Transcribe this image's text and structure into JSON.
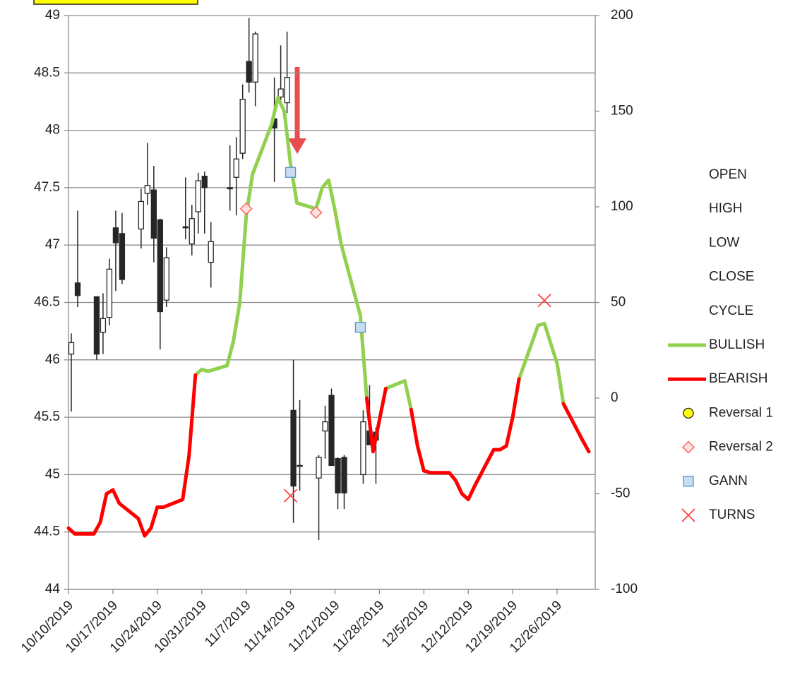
{
  "chart_data": {
    "type": "candlestick",
    "xlim": [
      "2019-10-10",
      "2020-01-01"
    ],
    "xticks": [
      {
        "value": "2019-10-10",
        "label": "10/10/2019"
      },
      {
        "value": "2019-10-17",
        "label": "10/17/2019"
      },
      {
        "value": "2019-10-24",
        "label": "10/24/2019"
      },
      {
        "value": "2019-10-31",
        "label": "10/31/2019"
      },
      {
        "value": "2019-11-07",
        "label": "11/7/2019"
      },
      {
        "value": "2019-11-14",
        "label": "11/14/2019"
      },
      {
        "value": "2019-11-21",
        "label": "11/21/2019"
      },
      {
        "value": "2019-11-28",
        "label": "11/28/2019"
      },
      {
        "value": "2019-12-05",
        "label": "12/5/2019"
      },
      {
        "value": "2019-12-12",
        "label": "12/12/2019"
      },
      {
        "value": "2019-12-19",
        "label": "12/19/2019"
      },
      {
        "value": "2019-12-26",
        "label": "12/26/2019"
      }
    ],
    "ylim": [
      44,
      49
    ],
    "yticks": [
      44,
      44.5,
      45,
      45.5,
      46,
      46.5,
      47,
      47.5,
      48,
      48.5,
      49
    ],
    "y2lim": [
      -100,
      200
    ],
    "y2ticks": [
      -100,
      -50,
      0,
      50,
      100,
      150,
      200
    ],
    "grid": true,
    "candles": {
      "x": [
        "2019-10-10",
        "2019-10-11",
        "2019-10-14",
        "2019-10-15",
        "2019-10-16",
        "2019-10-17",
        "2019-10-18",
        "2019-10-21",
        "2019-10-22",
        "2019-10-23",
        "2019-10-24",
        "2019-10-25",
        "2019-10-28",
        "2019-10-29",
        "2019-10-30",
        "2019-10-31",
        "2019-11-01",
        "2019-11-04",
        "2019-11-05",
        "2019-11-06",
        "2019-11-07",
        "2019-11-08",
        "2019-11-11",
        "2019-11-12",
        "2019-11-13",
        "2019-11-14",
        "2019-11-15",
        "2019-11-18",
        "2019-11-19",
        "2019-11-20",
        "2019-11-21",
        "2019-11-22",
        "2019-11-25",
        "2019-11-26",
        "2019-11-27"
      ],
      "open": {
        "name": "OPEN",
        "values": [
          46.05,
          46.67,
          46.55,
          46.24,
          46.37,
          47.15,
          47.1,
          47.14,
          47.45,
          47.48,
          47.22,
          46.52,
          47.16,
          47.01,
          47.29,
          47.6,
          46.85,
          47.5,
          47.59,
          47.8,
          48.6,
          48.42,
          48.1,
          48.29,
          48.24,
          45.56,
          45.08,
          44.97,
          45.38,
          45.69,
          45.14,
          45.15,
          45.0,
          45.38,
          45.37
        ]
      },
      "high": {
        "name": "HIGH",
        "values": [
          46.23,
          47.3,
          46.55,
          46.58,
          46.88,
          47.3,
          47.28,
          47.49,
          47.89,
          47.69,
          47.23,
          46.98,
          47.59,
          47.35,
          47.63,
          47.64,
          47.2,
          47.87,
          47.94,
          48.4,
          48.98,
          48.86,
          48.46,
          48.74,
          48.86,
          46.0,
          45.65,
          45.17,
          45.6,
          45.75,
          45.15,
          45.17,
          45.56,
          45.78,
          45.41
        ]
      },
      "low": {
        "name": "LOW",
        "values": [
          45.55,
          46.46,
          46.0,
          46.05,
          46.3,
          46.6,
          46.66,
          46.97,
          47.35,
          46.85,
          46.09,
          46.46,
          47.05,
          46.91,
          47.1,
          47.1,
          46.63,
          47.3,
          47.26,
          47.75,
          48.33,
          48.21,
          47.55,
          48.21,
          48.15,
          44.58,
          44.86,
          44.43,
          45.14,
          45.08,
          44.7,
          44.7,
          44.92,
          45.26,
          44.92
        ]
      },
      "close": {
        "name": "CLOSE",
        "values": [
          46.15,
          46.56,
          46.05,
          46.36,
          46.79,
          47.02,
          46.7,
          47.38,
          47.52,
          47.06,
          46.42,
          46.89,
          47.15,
          47.23,
          47.56,
          47.5,
          47.03,
          47.49,
          47.75,
          48.27,
          48.42,
          48.84,
          48.02,
          48.36,
          48.46,
          44.9,
          45.08,
          45.15,
          45.46,
          45.08,
          44.84,
          44.84,
          45.46,
          45.26,
          45.3
        ]
      },
      "up_color": "#ffffff",
      "down_color": "#262626",
      "edge_color": "#262626"
    },
    "x": [
      "2019-10-10",
      "2019-10-11",
      "2019-10-14",
      "2019-10-15",
      "2019-10-16",
      "2019-10-17",
      "2019-10-18",
      "2019-10-21",
      "2019-10-22",
      "2019-10-23",
      "2019-10-24",
      "2019-10-25",
      "2019-10-28",
      "2019-10-29",
      "2019-10-30",
      "2019-10-31",
      "2019-11-01",
      "2019-11-04",
      "2019-11-05",
      "2019-11-06",
      "2019-11-07",
      "2019-11-08",
      "2019-11-11",
      "2019-11-12",
      "2019-11-13",
      "2019-11-14",
      "2019-11-15",
      "2019-11-18",
      "2019-11-19",
      "2019-11-20",
      "2019-11-21",
      "2019-11-22",
      "2019-11-25",
      "2019-11-26",
      "2019-11-27",
      "2019-11-29",
      "2019-12-02",
      "2019-12-03",
      "2019-12-04",
      "2019-12-05",
      "2019-12-06",
      "2019-12-09",
      "2019-12-10",
      "2019-12-11",
      "2019-12-12",
      "2019-12-13",
      "2019-12-16",
      "2019-12-17",
      "2019-12-18",
      "2019-12-19",
      "2019-12-20",
      "2019-12-23",
      "2019-12-24",
      "2019-12-26",
      "2019-12-27",
      "2019-12-30",
      "2019-12-31"
    ],
    "series": [
      {
        "name": "CYCLE"
      },
      {
        "name": "BULLISH",
        "color": "#92d050",
        "axis": "y2",
        "kind": "line",
        "values": [
          null,
          null,
          null,
          null,
          null,
          null,
          null,
          null,
          null,
          null,
          null,
          null,
          null,
          null,
          12,
          15,
          14,
          17,
          30,
          50,
          95,
          117,
          143,
          157,
          150,
          122,
          102,
          99,
          110,
          114,
          98,
          80,
          43,
          0,
          null,
          5,
          9,
          -6,
          null,
          null,
          null,
          null,
          null,
          null,
          null,
          null,
          null,
          null,
          null,
          null,
          10,
          38,
          39,
          18,
          -3,
          null,
          null
        ]
      },
      {
        "name": "BEARISH",
        "color": "#ff0000",
        "axis": "y2",
        "kind": "line",
        "values": [
          -68,
          -71,
          -71,
          -65,
          -50,
          -48,
          -55,
          -63,
          -72,
          -68,
          -57,
          -57,
          -53,
          -30,
          12,
          null,
          null,
          null,
          null,
          null,
          null,
          null,
          null,
          null,
          null,
          null,
          null,
          null,
          null,
          null,
          null,
          null,
          null,
          0,
          -28,
          5,
          null,
          -6,
          -25,
          -38,
          -39,
          -39,
          -43,
          -50,
          -53,
          -46,
          -27,
          -27,
          -25,
          -10,
          10,
          null,
          null,
          null,
          -3,
          -22,
          -28
        ]
      },
      {
        "name": "Reversal 1",
        "color": "#ffff00",
        "axis": "y2",
        "kind": "marker",
        "marker": "circle",
        "x": [],
        "values": []
      },
      {
        "name": "Reversal 2",
        "color": "#ff6b6b",
        "axis": "y2",
        "kind": "marker",
        "marker": "diamond",
        "x": [
          "2019-11-07",
          "2019-11-18"
        ],
        "values": [
          99,
          97
        ]
      },
      {
        "name": "GANN",
        "color": "#5b9bd5",
        "axis": "y2",
        "kind": "marker",
        "marker": "square",
        "x": [
          "2019-11-14",
          "2019-11-25"
        ],
        "values": [
          118,
          37
        ]
      },
      {
        "name": "TURNS",
        "color": "#ff4040",
        "axis": "y2",
        "kind": "marker",
        "marker": "x",
        "x": [
          "2019-11-14",
          "2019-12-24"
        ],
        "values": [
          -51,
          51
        ]
      }
    ]
  }
}
